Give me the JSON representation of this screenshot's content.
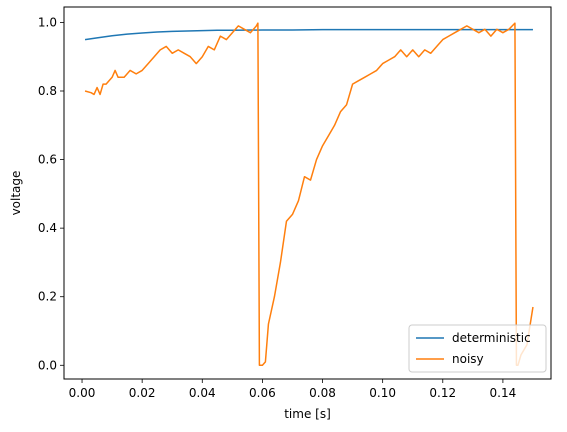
{
  "chart_data": {
    "type": "line",
    "xlabel": "time [s]",
    "ylabel": "voltage",
    "xlim": [
      -0.006,
      0.156
    ],
    "ylim": [
      -0.04,
      1.045
    ],
    "xticks": [
      0.0,
      0.02,
      0.04,
      0.06,
      0.08,
      0.1,
      0.12,
      0.14
    ],
    "xtick_labels": [
      "0.00",
      "0.02",
      "0.04",
      "0.06",
      "0.08",
      "0.10",
      "0.12",
      "0.14"
    ],
    "yticks": [
      0.0,
      0.2,
      0.4,
      0.6,
      0.8,
      1.0
    ],
    "ytick_labels": [
      "0.0",
      "0.2",
      "0.4",
      "0.6",
      "0.8",
      "1.0"
    ],
    "grid": false,
    "legend_position": "bottom-right",
    "series": [
      {
        "name": "deterministic",
        "color": "#1f77b4",
        "x": [
          0.001,
          0.005,
          0.01,
          0.015,
          0.02,
          0.025,
          0.03,
          0.035,
          0.04,
          0.045,
          0.05,
          0.06,
          0.07,
          0.08,
          0.09,
          0.1,
          0.11,
          0.12,
          0.13,
          0.14,
          0.15
        ],
        "y": [
          0.95,
          0.955,
          0.961,
          0.966,
          0.969,
          0.972,
          0.974,
          0.975,
          0.976,
          0.977,
          0.977,
          0.978,
          0.978,
          0.979,
          0.979,
          0.979,
          0.979,
          0.979,
          0.979,
          0.979,
          0.979
        ]
      },
      {
        "name": "noisy",
        "color": "#ff7f0e",
        "x": [
          0.001,
          0.003,
          0.004,
          0.005,
          0.006,
          0.007,
          0.008,
          0.01,
          0.011,
          0.012,
          0.014,
          0.016,
          0.018,
          0.02,
          0.022,
          0.024,
          0.026,
          0.028,
          0.03,
          0.032,
          0.034,
          0.036,
          0.038,
          0.04,
          0.042,
          0.044,
          0.046,
          0.048,
          0.05,
          0.052,
          0.054,
          0.056,
          0.058,
          0.0585,
          0.059,
          0.06,
          0.061,
          0.062,
          0.064,
          0.066,
          0.068,
          0.07,
          0.072,
          0.074,
          0.076,
          0.078,
          0.08,
          0.082,
          0.084,
          0.086,
          0.088,
          0.09,
          0.092,
          0.094,
          0.096,
          0.098,
          0.1,
          0.102,
          0.104,
          0.106,
          0.108,
          0.11,
          0.112,
          0.114,
          0.116,
          0.118,
          0.12,
          0.122,
          0.124,
          0.126,
          0.128,
          0.13,
          0.132,
          0.134,
          0.136,
          0.138,
          0.14,
          0.142,
          0.144,
          0.1445,
          0.145,
          0.146,
          0.148,
          0.15
        ],
        "y": [
          0.8,
          0.795,
          0.79,
          0.81,
          0.79,
          0.82,
          0.82,
          0.84,
          0.86,
          0.84,
          0.84,
          0.86,
          0.85,
          0.86,
          0.88,
          0.9,
          0.92,
          0.93,
          0.91,
          0.92,
          0.91,
          0.9,
          0.88,
          0.9,
          0.93,
          0.92,
          0.96,
          0.95,
          0.97,
          0.99,
          0.98,
          0.97,
          0.99,
          0.998,
          0.0,
          0.0,
          0.01,
          0.12,
          0.2,
          0.3,
          0.42,
          0.44,
          0.48,
          0.55,
          0.54,
          0.6,
          0.64,
          0.67,
          0.7,
          0.74,
          0.76,
          0.82,
          0.83,
          0.84,
          0.85,
          0.86,
          0.88,
          0.89,
          0.9,
          0.92,
          0.9,
          0.92,
          0.9,
          0.92,
          0.91,
          0.93,
          0.95,
          0.96,
          0.97,
          0.98,
          0.99,
          0.98,
          0.97,
          0.98,
          0.96,
          0.98,
          0.97,
          0.98,
          0.998,
          0.0,
          0.0,
          0.03,
          0.06,
          0.17
        ]
      }
    ]
  }
}
